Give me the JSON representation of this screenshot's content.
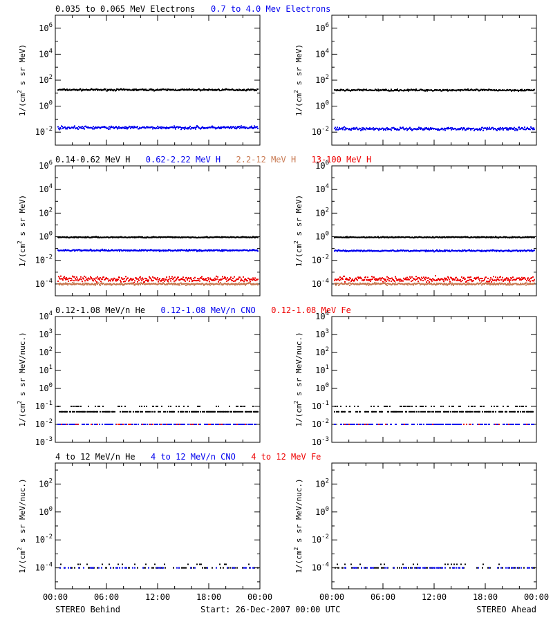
{
  "colors": {
    "black": "#000000",
    "blue": "#0000ee",
    "tan": "#c87850",
    "red": "#ee0000"
  },
  "footer": {
    "left": "STEREO Behind",
    "center": "Start: 26-Dec-2007 00:00 UTC",
    "right": "STEREO Ahead"
  },
  "x_tick_labels": [
    "00:00",
    "06:00",
    "12:00",
    "18:00",
    "00:00"
  ],
  "chart_data": [
    {
      "type": "scatter",
      "row": 1,
      "title_entries": [
        {
          "text": "0.035 to 0.065 MeV Electrons",
          "color": "black"
        },
        {
          "text": "0.7 to 4.0 Mev Electrons",
          "color": "blue"
        }
      ],
      "ylabel": "1/(cm2 s sr MeV)",
      "yscale": "log",
      "ylim_exp": [
        -3,
        7
      ],
      "ytick_exps": [
        -2,
        0,
        2,
        4,
        6
      ],
      "xlim_hours": [
        0,
        24
      ],
      "panels": [
        {
          "name": "STEREO Behind",
          "series": [
            {
              "color": "black",
              "level": 18,
              "scatter": 0.07
            },
            {
              "color": "blue",
              "level": 0.022,
              "scatter": 0.12
            }
          ]
        },
        {
          "name": "STEREO Ahead",
          "series": [
            {
              "color": "black",
              "level": 17,
              "scatter": 0.07
            },
            {
              "color": "blue",
              "level": 0.018,
              "scatter": 0.12
            }
          ]
        }
      ]
    },
    {
      "type": "scatter",
      "row": 2,
      "title_entries": [
        {
          "text": "0.14-0.62 MeV H",
          "color": "black"
        },
        {
          "text": "0.62-2.22 MeV H",
          "color": "blue"
        },
        {
          "text": "2.2-12 MeV H",
          "color": "tan"
        },
        {
          "text": "13-100 MeV H",
          "color": "red"
        }
      ],
      "ylabel": "1/(cm2 s sr MeV)",
      "yscale": "log",
      "ylim_exp": [
        -5,
        6
      ],
      "ytick_exps": [
        -4,
        -2,
        0,
        2,
        4,
        6
      ],
      "xlim_hours": [
        0,
        24
      ],
      "panels": [
        {
          "name": "STEREO Behind",
          "series": [
            {
              "color": "black",
              "level": 0.9,
              "scatter": 0.05
            },
            {
              "color": "blue",
              "level": 0.07,
              "scatter": 0.07
            },
            {
              "color": "red",
              "level": 0.00025,
              "scatter": 0.25
            },
            {
              "color": "tan",
              "level": 0.0001,
              "scatter": 0.1
            }
          ]
        },
        {
          "name": "STEREO Ahead",
          "series": [
            {
              "color": "black",
              "level": 0.9,
              "scatter": 0.05
            },
            {
              "color": "blue",
              "level": 0.065,
              "scatter": 0.07
            },
            {
              "color": "red",
              "level": 0.00025,
              "scatter": 0.25
            },
            {
              "color": "tan",
              "level": 0.0001,
              "scatter": 0.1
            }
          ]
        }
      ]
    },
    {
      "type": "scatter",
      "row": 3,
      "title_entries": [
        {
          "text": "0.12-1.08 MeV/n He",
          "color": "black"
        },
        {
          "text": "0.12-1.08 MeV/n CNO",
          "color": "blue"
        },
        {
          "text": "0.12-1.08 MeV Fe",
          "color": "red"
        }
      ],
      "ylabel": "1/(cm2 s sr MeV/nuc.)",
      "yscale": "log",
      "ylim_exp": [
        -3,
        4
      ],
      "ytick_exps": [
        -3,
        -2,
        -1,
        0,
        1,
        2,
        3,
        4
      ],
      "xlim_hours": [
        0,
        24
      ],
      "panels": [
        {
          "name": "STEREO Behind",
          "series": [
            {
              "color": "black",
              "levels": [
                0.05,
                0.1
              ],
              "fraction": 0.7
            },
            {
              "color": "blue",
              "level": 0.01,
              "fraction": 0.45
            },
            {
              "color": "red",
              "level": 0.01,
              "fraction": 0.08
            }
          ]
        },
        {
          "name": "STEREO Ahead",
          "series": [
            {
              "color": "black",
              "levels": [
                0.05,
                0.1
              ],
              "fraction": 0.7
            },
            {
              "color": "blue",
              "level": 0.01,
              "fraction": 0.45
            },
            {
              "color": "red",
              "level": 0.01,
              "fraction": 0.05
            }
          ]
        }
      ]
    },
    {
      "type": "scatter",
      "row": 4,
      "title_entries": [
        {
          "text": "4 to 12 MeV/n He",
          "color": "black"
        },
        {
          "text": "4 to 12 MeV/n CNO",
          "color": "blue"
        },
        {
          "text": "4 to 12 MeV Fe",
          "color": "red"
        }
      ],
      "ylabel": "1/(cm2 s sr MeV/nuc.)",
      "yscale": "log",
      "ylim_exp": [
        -5.5,
        3.5
      ],
      "ytick_exps": [
        -4,
        -2,
        0,
        2
      ],
      "xlim_hours": [
        0,
        24
      ],
      "panels": [
        {
          "name": "STEREO Behind",
          "series": [
            {
              "color": "black",
              "levels": [
                0.0001,
                0.00018
              ],
              "fraction": 0.3
            },
            {
              "color": "blue",
              "level": 0.0001,
              "fraction": 0.15
            }
          ]
        },
        {
          "name": "STEREO Ahead",
          "series": [
            {
              "color": "black",
              "levels": [
                0.0001,
                0.00018
              ],
              "fraction": 0.25
            },
            {
              "color": "blue",
              "level": 0.0001,
              "fraction": 0.2
            }
          ]
        }
      ]
    }
  ]
}
